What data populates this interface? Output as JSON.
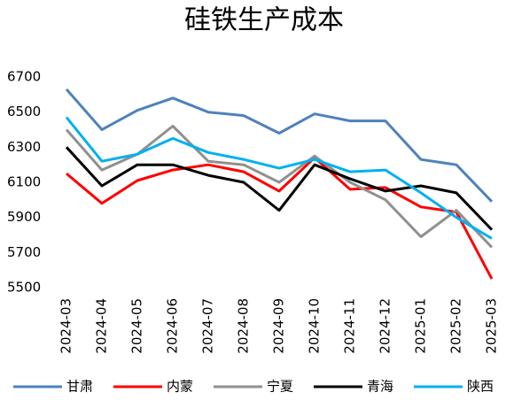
{
  "chart_data": {
    "type": "line",
    "title": "硅铁生产成本",
    "x": [
      "2024-03",
      "2024-04",
      "2024-05",
      "2024-06",
      "2024-07",
      "2024-08",
      "2024-09",
      "2024-10",
      "2024-11",
      "2024-12",
      "2025-01",
      "2025-02",
      "2025-03"
    ],
    "series": [
      {
        "name": "甘肃",
        "color": "#4f81bd",
        "values": [
          6630,
          6400,
          6510,
          6580,
          6500,
          6480,
          6380,
          6490,
          6450,
          6450,
          6230,
          6200,
          5990
        ]
      },
      {
        "name": "内蒙",
        "color": "#ff0000",
        "values": [
          6150,
          5980,
          6110,
          6170,
          6200,
          6160,
          6050,
          6240,
          6060,
          6070,
          5960,
          5930,
          5550
        ]
      },
      {
        "name": "宁夏",
        "color": "#909090",
        "values": [
          6400,
          6170,
          6260,
          6420,
          6220,
          6200,
          6100,
          6250,
          6100,
          6000,
          5790,
          5940,
          5730
        ]
      },
      {
        "name": "青海",
        "color": "#000000",
        "values": [
          6300,
          6080,
          6200,
          6200,
          6140,
          6100,
          5940,
          6200,
          6120,
          6050,
          6080,
          6040,
          5830
        ]
      },
      {
        "name": "陕西",
        "color": "#00b0f0",
        "values": [
          6470,
          6220,
          6260,
          6350,
          6270,
          6230,
          6180,
          6230,
          6160,
          6170,
          6040,
          5900,
          5780
        ]
      }
    ],
    "ylim": [
      5500,
      6700
    ],
    "yticks": [
      5500,
      5700,
      5900,
      6100,
      6300,
      6500,
      6700
    ],
    "legend": "bottom"
  }
}
